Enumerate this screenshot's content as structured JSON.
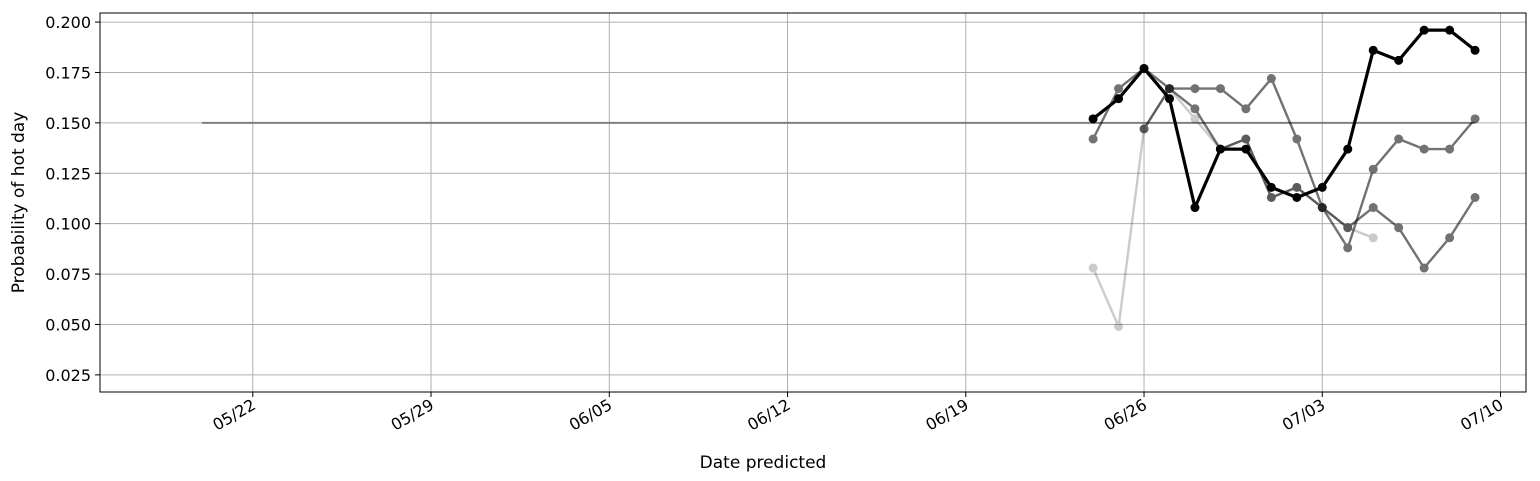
{
  "chart_data": {
    "type": "line",
    "title": "",
    "xlabel": "Date predicted",
    "ylabel": "Probability of hot day",
    "x_axis": "date",
    "xlim": [
      "2025-05-16",
      "2025-07-11"
    ],
    "ylim": [
      0.0165,
      0.2045
    ],
    "grid": true,
    "legend": "none",
    "x_ticks": [
      "2025-05-22",
      "2025-05-29",
      "2025-06-05",
      "2025-06-12",
      "2025-06-19",
      "2025-06-26",
      "2025-07-03",
      "2025-07-10"
    ],
    "x_tick_labels": [
      "05/22",
      "05/29",
      "06/05",
      "06/12",
      "06/19",
      "06/26",
      "07/03",
      "07/10"
    ],
    "y_ticks": [
      0.025,
      0.05,
      0.075,
      0.1,
      0.125,
      0.15,
      0.175,
      0.2
    ],
    "y_tick_labels": [
      "0.025",
      "0.050",
      "0.075",
      "0.100",
      "0.125",
      "0.150",
      "0.175",
      "0.200"
    ],
    "reference_line": {
      "x": [
        "2025-05-20",
        "2025-07-09"
      ],
      "y": 0.15,
      "color": "#808080"
    },
    "series": [
      {
        "style": "light",
        "color": "#000000",
        "opacity": 0.2,
        "x": [
          "2025-06-24",
          "2025-06-25",
          "2025-06-26",
          "2025-06-27",
          "2025-06-28",
          "2025-06-29",
          "2025-06-30",
          "2025-07-01",
          "2025-07-02",
          "2025-07-03",
          "2025-07-04",
          "2025-07-05"
        ],
        "y": [
          0.078,
          0.049,
          0.147,
          0.167,
          0.152,
          0.137,
          0.142,
          0.113,
          0.118,
          0.108,
          0.098,
          0.093
        ]
      },
      {
        "style": "medium",
        "color": "#000000",
        "opacity": 0.55,
        "x": [
          "2025-06-24",
          "2025-06-25",
          "2025-06-26",
          "2025-06-27",
          "2025-06-28",
          "2025-06-29",
          "2025-06-30",
          "2025-07-01",
          "2025-07-02",
          "2025-07-03",
          "2025-07-04",
          "2025-07-05",
          "2025-07-06",
          "2025-07-07",
          "2025-07-08",
          "2025-07-09"
        ],
        "y": [
          0.142,
          0.167,
          0.177,
          0.167,
          0.157,
          0.137,
          0.142,
          0.113,
          0.118,
          0.108,
          0.098,
          0.108,
          0.098,
          0.078,
          0.093,
          0.113
        ]
      },
      {
        "style": "medium",
        "color": "#000000",
        "opacity": 0.55,
        "x": [
          "2025-06-26",
          "2025-06-27",
          "2025-06-28",
          "2025-06-29",
          "2025-06-30",
          "2025-07-01",
          "2025-07-02",
          "2025-07-03",
          "2025-07-04",
          "2025-07-05",
          "2025-07-06",
          "2025-07-07",
          "2025-07-08",
          "2025-07-09"
        ],
        "y": [
          0.147,
          0.167,
          0.167,
          0.167,
          0.157,
          0.172,
          0.142,
          0.108,
          0.088,
          0.127,
          0.142,
          0.137,
          0.137,
          0.152
        ]
      },
      {
        "style": "bold",
        "color": "#000000",
        "opacity": 1.0,
        "x": [
          "2025-06-24",
          "2025-06-25",
          "2025-06-26",
          "2025-06-27",
          "2025-06-28",
          "2025-06-29",
          "2025-06-30",
          "2025-07-01",
          "2025-07-02",
          "2025-07-03",
          "2025-07-04",
          "2025-07-05",
          "2025-07-06",
          "2025-07-07",
          "2025-07-08",
          "2025-07-09"
        ],
        "y": [
          0.152,
          0.162,
          0.177,
          0.162,
          0.108,
          0.137,
          0.137,
          0.118,
          0.113,
          0.118,
          0.137,
          0.186,
          0.181,
          0.196,
          0.196,
          0.186
        ]
      }
    ]
  }
}
